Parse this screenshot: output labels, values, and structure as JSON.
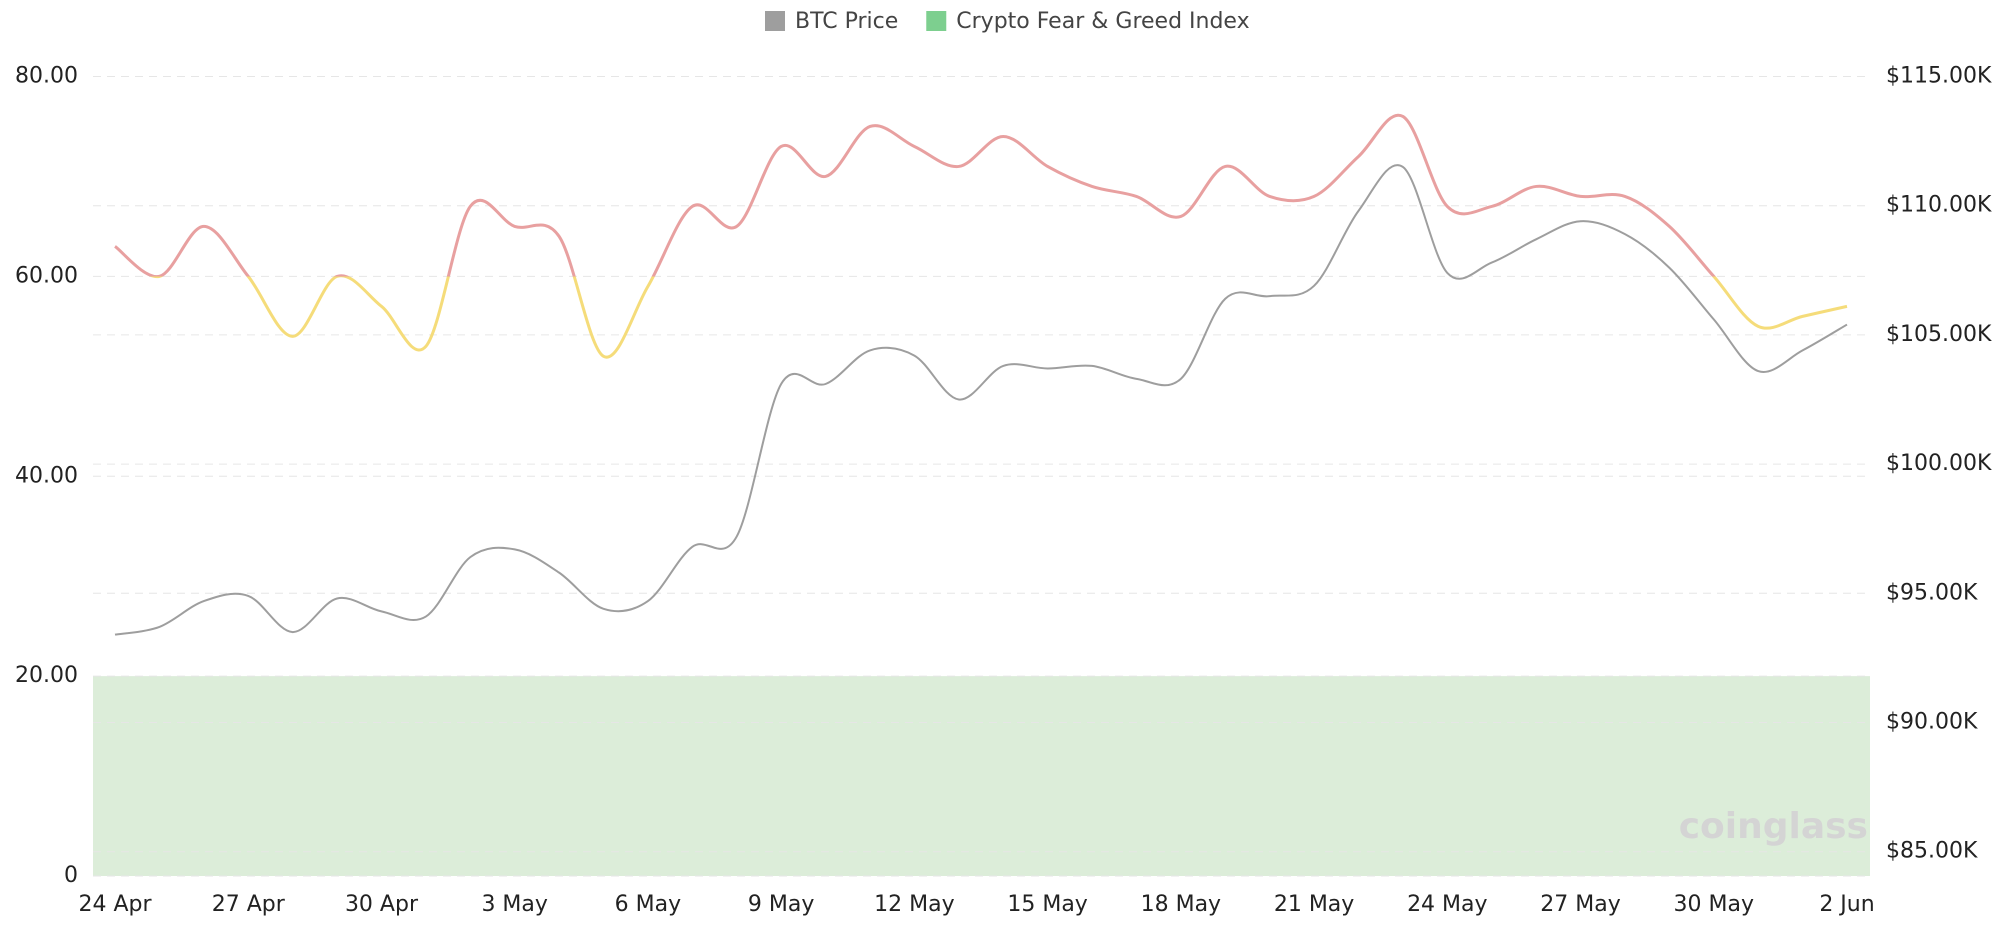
{
  "chart_data": {
    "type": "line",
    "categories": [
      "24 Apr",
      null,
      null,
      "27 Apr",
      null,
      null,
      "30 Apr",
      null,
      null,
      "3 May",
      null,
      null,
      "6 May",
      null,
      null,
      "9 May",
      null,
      null,
      "12 May",
      null,
      null,
      "15 May",
      null,
      null,
      "18 May",
      null,
      null,
      "21 May",
      null,
      null,
      "24 May",
      null,
      null,
      "27 May",
      null,
      null,
      "30 May",
      null,
      null,
      "2 Jun"
    ],
    "series": [
      {
        "name": "BTC Price",
        "color": "#9e9e9e",
        "axis": "y2",
        "values": [
          93400,
          93700,
          94700,
          94900,
          93500,
          94800,
          94300,
          94100,
          96400,
          96700,
          95800,
          94400,
          94700,
          96800,
          97200,
          103100,
          103100,
          104400,
          104200,
          102500,
          103800,
          103700,
          103800,
          103300,
          103300,
          106400,
          106500,
          106900,
          109800,
          111500,
          107400,
          107800,
          108700,
          109400,
          108900,
          107600,
          105600,
          103600,
          104400,
          105400
        ]
      },
      {
        "name": "Crypto Fear & Greed Index",
        "color": "#7dcf8f",
        "zones": [
          {
            "min": 60,
            "color": "#e8a0a0"
          },
          {
            "min": 0,
            "color": "#f5dc7a"
          }
        ],
        "values": [
          63,
          60,
          65,
          60,
          54,
          60,
          57,
          53,
          67,
          65,
          64,
          52,
          59,
          67,
          65,
          73,
          70,
          75,
          73,
          71,
          74,
          71,
          69,
          68,
          66,
          71,
          68,
          68,
          72,
          76,
          67,
          67,
          69,
          68,
          68,
          65,
          60,
          55,
          56,
          57
        ]
      }
    ],
    "band": {
      "from": 0,
      "to": 20,
      "color": "#dcedd9"
    },
    "ylim": [
      0,
      80
    ],
    "yticks": [
      0,
      {
        "value": 20,
        "label": "20.00"
      },
      {
        "value": 40,
        "label": "40.00"
      },
      {
        "value": 60,
        "label": "60.00"
      },
      {
        "value": 80,
        "label": "80.00"
      }
    ],
    "y2lim": [
      84060,
      115000
    ],
    "y2ticks": [
      {
        "value": 85000,
        "label": "$85.00K"
      },
      {
        "value": 90000,
        "label": "$90.00K"
      },
      {
        "value": 95000,
        "label": "$95.00K"
      },
      {
        "value": 100000,
        "label": "$100.00K"
      },
      {
        "value": 105000,
        "label": "$105.00K"
      },
      {
        "value": 110000,
        "label": "$110.00K"
      },
      {
        "value": 115000,
        "label": "$115.00K"
      }
    ],
    "grid": true,
    "legend": "top",
    "watermark": "coinglass"
  }
}
